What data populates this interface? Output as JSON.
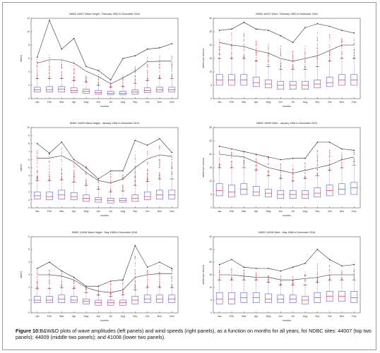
{
  "figure": {
    "caption_label": "Figure 10:",
    "caption_text": "B&W&O plots of wave amplitudes (left panels) and wind speeds (right panels), as a function on months for all years, for NDBC sites: 44007 (top two panels); 44009 (middle two panels); and 41008 (lower two panels)."
  },
  "chart_data": [
    {
      "type": "box",
      "title": "NDBC 44007 Wave Height - February 1982 to December 2016",
      "xlabel": "months",
      "ylabel": "meters",
      "ylim": [
        0,
        12
      ],
      "yticks": [
        0,
        2,
        4,
        6,
        8,
        10,
        12
      ],
      "categories": [
        "Jan",
        "Feb",
        "Mar",
        "Apr",
        "May",
        "Jun",
        "Jul",
        "Aug",
        "Sep",
        "Oct",
        "Nov",
        "Dec"
      ],
      "boxes": [
        {
          "q1": 1.0,
          "median": 1.3,
          "q3": 1.7
        },
        {
          "q1": 1.0,
          "median": 1.35,
          "q3": 1.8
        },
        {
          "q1": 1.0,
          "median": 1.4,
          "q3": 1.8
        },
        {
          "q1": 0.9,
          "median": 1.2,
          "q3": 1.6
        },
        {
          "q1": 0.8,
          "median": 1.1,
          "q3": 1.4
        },
        {
          "q1": 0.7,
          "median": 0.9,
          "q3": 1.2
        },
        {
          "q1": 0.6,
          "median": 0.8,
          "q3": 1.1
        },
        {
          "q1": 0.6,
          "median": 0.8,
          "q3": 1.1
        },
        {
          "q1": 0.7,
          "median": 1.0,
          "q3": 1.3
        },
        {
          "q1": 0.9,
          "median": 1.2,
          "q3": 1.6
        },
        {
          "q1": 1.0,
          "median": 1.3,
          "q3": 1.7
        },
        {
          "q1": 1.0,
          "median": 1.3,
          "q3": 1.7
        }
      ],
      "upper_whisker": [
        3.0,
        3.0,
        3.0,
        2.7,
        2.5,
        2.0,
        1.7,
        1.8,
        2.3,
        2.7,
        3.0,
        3.0
      ],
      "outlier_top": [
        6.0,
        6.6,
        6.0,
        5.6,
        4.2,
        3.8,
        2.4,
        3.6,
        4.8,
        6.2,
        6.4,
        6.5
      ],
      "max_line": [
        6.2,
        11.7,
        7.4,
        9.0,
        4.8,
        4.2,
        2.8,
        6.0,
        6.4,
        7.4,
        7.6,
        8.2
      ],
      "p99_line": [
        5.3,
        5.8,
        5.8,
        5.3,
        4.1,
        3.3,
        2.2,
        3.1,
        4.1,
        5.5,
        5.6,
        5.6
      ]
    },
    {
      "type": "box",
      "title": "NDBC 44007 Wind - February 1982 to December 2016",
      "xlabel": "months",
      "ylabel": "meters per second",
      "ylim": [
        0,
        30
      ],
      "yticks": [
        0,
        5,
        10,
        15,
        20,
        25,
        30
      ],
      "categories": [
        "Jan",
        "Feb",
        "Mar",
        "Apr",
        "May",
        "Jun",
        "Jul",
        "Aug",
        "Sep",
        "Oct",
        "Nov",
        "Dec"
      ],
      "boxes": [
        {
          "q1": 5.0,
          "median": 7.0,
          "q3": 9.0
        },
        {
          "q1": 5.0,
          "median": 7.0,
          "q3": 9.0
        },
        {
          "q1": 5.0,
          "median": 7.0,
          "q3": 9.0
        },
        {
          "q1": 4.5,
          "median": 6.0,
          "q3": 8.0
        },
        {
          "q1": 4.0,
          "median": 5.5,
          "q3": 7.0
        },
        {
          "q1": 3.5,
          "median": 5.0,
          "q3": 6.5
        },
        {
          "q1": 3.5,
          "median": 5.0,
          "q3": 6.5
        },
        {
          "q1": 3.5,
          "median": 5.0,
          "q3": 6.5
        },
        {
          "q1": 4.0,
          "median": 5.5,
          "q3": 7.0
        },
        {
          "q1": 4.5,
          "median": 6.0,
          "q3": 8.0
        },
        {
          "q1": 5.0,
          "median": 7.0,
          "q3": 9.0
        },
        {
          "q1": 5.0,
          "median": 7.0,
          "q3": 9.0
        }
      ],
      "upper_whisker": [
        15,
        15,
        15,
        14,
        12,
        11,
        11,
        11,
        12,
        14,
        15,
        15
      ],
      "outlier_top": [
        23,
        25,
        25,
        22,
        21,
        20,
        19,
        20,
        25,
        24,
        23,
        23
      ],
      "max_line": [
        25.5,
        26,
        28.5,
        26,
        25.5,
        23.5,
        21,
        26.5,
        28,
        27,
        25.5,
        24.5
      ],
      "p99_line": [
        21,
        20,
        19.5,
        18,
        17,
        15,
        14,
        15,
        16,
        18,
        20,
        20
      ]
    },
    {
      "type": "box",
      "title": "NDBC 44009 Wave Height - January 1984 to December 2013",
      "xlabel": "months",
      "ylabel": "meters",
      "ylim": [
        0,
        10
      ],
      "yticks": [
        0,
        1,
        2,
        3,
        4,
        5,
        6,
        7,
        8,
        9,
        10
      ],
      "categories": [
        "Jan",
        "Feb",
        "Mar",
        "Apr",
        "May",
        "Jun",
        "Jul",
        "Aug",
        "Sep",
        "Oct",
        "Nov",
        "Dec"
      ],
      "boxes": [
        {
          "q1": 1.1,
          "median": 1.5,
          "q3": 2.0
        },
        {
          "q1": 1.0,
          "median": 1.4,
          "q3": 2.0
        },
        {
          "q1": 1.1,
          "median": 1.6,
          "q3": 2.2
        },
        {
          "q1": 1.0,
          "median": 1.4,
          "q3": 1.9
        },
        {
          "q1": 0.8,
          "median": 1.2,
          "q3": 1.6
        },
        {
          "q1": 0.7,
          "median": 1.0,
          "q3": 1.3
        },
        {
          "q1": 0.6,
          "median": 0.9,
          "q3": 1.2
        },
        {
          "q1": 0.7,
          "median": 0.9,
          "q3": 1.2
        },
        {
          "q1": 0.8,
          "median": 1.2,
          "q3": 1.6
        },
        {
          "q1": 1.0,
          "median": 1.4,
          "q3": 2.0
        },
        {
          "q1": 1.1,
          "median": 1.6,
          "q3": 2.2
        },
        {
          "q1": 1.1,
          "median": 1.6,
          "q3": 2.2
        }
      ],
      "upper_whisker": [
        3.4,
        3.4,
        3.5,
        3.2,
        2.8,
        2.3,
        2.0,
        2.1,
        2.8,
        3.3,
        3.6,
        3.6
      ],
      "outlier_top": [
        7.5,
        6.8,
        7.6,
        6.4,
        5.2,
        3.8,
        4.4,
        4.2,
        7.4,
        7.2,
        8.2,
        6.8
      ],
      "max_line": [
        8.0,
        6.8,
        8.2,
        6.0,
        5.0,
        3.6,
        4.6,
        4.6,
        8.4,
        7.8,
        8.6,
        6.9
      ],
      "p99_line": [
        6.2,
        6.2,
        6.5,
        5.7,
        4.4,
        3.4,
        3.1,
        3.6,
        5.0,
        6.1,
        6.6,
        6.4
      ]
    },
    {
      "type": "box",
      "title": "NDBC 44009 Wind - January 1984 to December 2013",
      "xlabel": "months",
      "ylabel": "meters per second",
      "ylim": [
        0,
        30
      ],
      "yticks": [
        0,
        5,
        10,
        15,
        20,
        25,
        30
      ],
      "categories": [
        "Jan",
        "Feb",
        "Mar",
        "Apr",
        "May",
        "Jun",
        "Jul",
        "Aug",
        "Sep",
        "Oct",
        "Nov",
        "Dec"
      ],
      "boxes": [
        {
          "q1": 4.5,
          "median": 6.5,
          "q3": 9.0
        },
        {
          "q1": 4.0,
          "median": 6.0,
          "q3": 8.5
        },
        {
          "q1": 5.0,
          "median": 7.0,
          "q3": 9.0
        },
        {
          "q1": 4.5,
          "median": 6.0,
          "q3": 8.0
        },
        {
          "q1": 4.0,
          "median": 5.5,
          "q3": 7.0
        },
        {
          "q1": 3.5,
          "median": 5.0,
          "q3": 6.5
        },
        {
          "q1": 3.5,
          "median": 5.0,
          "q3": 6.5
        },
        {
          "q1": 3.5,
          "median": 5.0,
          "q3": 6.5
        },
        {
          "q1": 4.0,
          "median": 5.5,
          "q3": 7.5
        },
        {
          "q1": 4.5,
          "median": 6.5,
          "q3": 8.5
        },
        {
          "q1": 5.0,
          "median": 7.0,
          "q3": 9.0
        },
        {
          "q1": 5.0,
          "median": 7.5,
          "q3": 9.5
        }
      ],
      "upper_whisker": [
        15,
        15,
        15,
        14,
        12,
        11,
        10,
        11,
        12,
        14,
        15,
        16
      ],
      "outlier_top": [
        22,
        21,
        21,
        20,
        19,
        17,
        16,
        17,
        22,
        22,
        21,
        21
      ],
      "max_line": [
        23,
        22,
        21,
        20,
        19,
        18,
        18.5,
        18.5,
        24.5,
        24.5,
        22,
        21.5
      ],
      "p99_line": [
        20,
        19.5,
        19,
        17,
        15,
        14,
        13,
        14,
        15,
        16,
        18,
        19
      ]
    },
    {
      "type": "box",
      "title": "NDBC 41008 Wave Height - May 1988 to December 2016",
      "xlabel": "months",
      "ylabel": "meters",
      "ylim": [
        0,
        6
      ],
      "yticks": [
        0,
        1,
        2,
        3,
        4,
        5,
        6
      ],
      "categories": [
        "Jan",
        "Feb",
        "Mar",
        "Apr",
        "May",
        "Jun",
        "Jul",
        "Aug",
        "Sep",
        "Oct",
        "Nov",
        "Dec"
      ],
      "boxes": [
        {
          "q1": 0.8,
          "median": 1.0,
          "q3": 1.3
        },
        {
          "q1": 0.8,
          "median": 1.0,
          "q3": 1.3
        },
        {
          "q1": 0.8,
          "median": 1.1,
          "q3": 1.4
        },
        {
          "q1": 0.8,
          "median": 1.0,
          "q3": 1.3
        },
        {
          "q1": 0.7,
          "median": 0.9,
          "q3": 1.1
        },
        {
          "q1": 0.6,
          "median": 0.8,
          "q3": 1.0
        },
        {
          "q1": 0.6,
          "median": 0.8,
          "q3": 1.0
        },
        {
          "q1": 0.6,
          "median": 0.8,
          "q3": 1.0
        },
        {
          "q1": 0.7,
          "median": 1.0,
          "q3": 1.3
        },
        {
          "q1": 0.8,
          "median": 1.1,
          "q3": 1.4
        },
        {
          "q1": 0.8,
          "median": 1.1,
          "q3": 1.4
        },
        {
          "q1": 0.8,
          "median": 1.1,
          "q3": 1.4
        }
      ],
      "upper_whisker": [
        1.9,
        1.9,
        2.0,
        1.9,
        1.6,
        1.4,
        1.3,
        1.4,
        1.8,
        2.0,
        2.0,
        2.0
      ],
      "outlier_top": [
        3.4,
        3.4,
        3.2,
        2.6,
        2.0,
        2.0,
        2.4,
        2.6,
        4.6,
        3.4,
        3.8,
        3.6
      ],
      "max_line": [
        3.5,
        4.0,
        3.3,
        2.8,
        2.1,
        2.1,
        2.5,
        2.6,
        5.3,
        3.6,
        4.0,
        3.5
      ],
      "p99_line": [
        3.0,
        3.0,
        2.9,
        2.6,
        2.0,
        1.7,
        1.6,
        1.8,
        2.8,
        3.0,
        3.1,
        3.1
      ]
    },
    {
      "type": "box",
      "title": "NDBC 41008 Wind - May 1988 to December 2016",
      "xlabel": "months",
      "ylabel": "meters per second",
      "ylim": [
        0,
        30
      ],
      "yticks": [
        0,
        5,
        10,
        15,
        20,
        25,
        30
      ],
      "categories": [
        "Jan",
        "Feb",
        "Mar",
        "Apr",
        "May",
        "Jun",
        "Jul",
        "Aug",
        "Sep",
        "Oct",
        "Nov",
        "Dec"
      ],
      "boxes": [
        {
          "q1": 3.5,
          "median": 5.5,
          "q3": 8.0
        },
        {
          "q1": 3.5,
          "median": 5.5,
          "q3": 8.0
        },
        {
          "q1": 4.0,
          "median": 6.0,
          "q3": 8.0
        },
        {
          "q1": 4.0,
          "median": 6.0,
          "q3": 8.0
        },
        {
          "q1": 4.0,
          "median": 5.5,
          "q3": 7.5
        },
        {
          "q1": 4.0,
          "median": 5.5,
          "q3": 7.0
        },
        {
          "q1": 4.0,
          "median": 5.5,
          "q3": 7.0
        },
        {
          "q1": 3.5,
          "median": 5.0,
          "q3": 6.5
        },
        {
          "q1": 4.0,
          "median": 6.0,
          "q3": 8.0
        },
        {
          "q1": 4.5,
          "median": 6.5,
          "q3": 8.5
        },
        {
          "q1": 4.5,
          "median": 6.5,
          "q3": 8.5
        },
        {
          "q1": 4.0,
          "median": 6.0,
          "q3": 8.5
        }
      ],
      "upper_whisker": [
        13,
        13,
        13,
        13,
        12,
        11,
        11,
        11,
        12,
        13,
        13,
        13
      ],
      "outlier_top": [
        18,
        18,
        17,
        16,
        16,
        15,
        15,
        16,
        22,
        19,
        17,
        18
      ],
      "max_line": [
        19,
        21,
        18,
        17.5,
        17.5,
        16.5,
        18,
        19.5,
        25,
        21,
        18.5,
        19
      ],
      "p99_line": [
        15,
        15,
        14.5,
        14,
        14,
        13,
        13,
        13.5,
        14,
        15,
        15,
        15
      ]
    }
  ]
}
